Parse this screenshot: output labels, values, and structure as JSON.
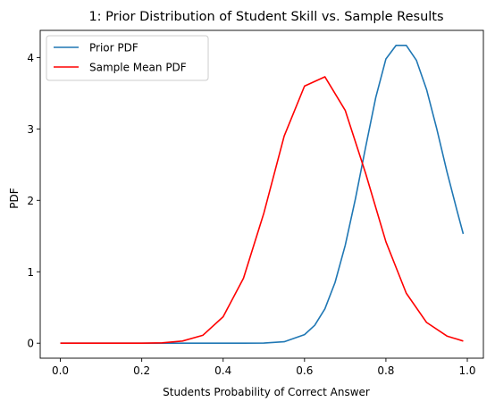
{
  "chart_data": {
    "type": "line",
    "title": "1: Prior Distribution of Student Skill vs. Sample Results",
    "xlabel": "Students Probability of Correct Answer",
    "ylabel": "PDF",
    "xlim": [
      -0.0495,
      1.0395
    ],
    "ylim": [
      -0.21,
      4.38
    ],
    "xticks": [
      0.0,
      0.2,
      0.4,
      0.6,
      0.8,
      1.0
    ],
    "xtick_labels": [
      "0.0",
      "0.2",
      "0.4",
      "0.6",
      "0.8",
      "1.0"
    ],
    "yticks": [
      0,
      1,
      2,
      3,
      4
    ],
    "ytick_labels": [
      "0",
      "1",
      "2",
      "3",
      "4"
    ],
    "grid": false,
    "legend_position": "top-left",
    "series": [
      {
        "name": "Prior PDF",
        "color": "#1f77b4",
        "x": [
          0.0,
          0.05,
          0.1,
          0.15,
          0.2,
          0.25,
          0.3,
          0.35,
          0.4,
          0.45,
          0.5,
          0.55,
          0.6,
          0.625,
          0.65,
          0.675,
          0.7,
          0.725,
          0.75,
          0.775,
          0.8,
          0.825,
          0.85,
          0.875,
          0.9,
          0.925,
          0.95,
          0.975,
          0.99
        ],
        "y": [
          0.0,
          0.0,
          0.0,
          0.0,
          0.0,
          0.0,
          0.0,
          0.0,
          0.0,
          0.0,
          0.002,
          0.02,
          0.12,
          0.25,
          0.48,
          0.85,
          1.37,
          2.02,
          2.74,
          3.44,
          3.98,
          4.17,
          4.17,
          3.96,
          3.55,
          3.0,
          2.4,
          1.85,
          1.53
        ]
      },
      {
        "name": "Sample Mean PDF",
        "color": "#ff0000",
        "x": [
          0.0,
          0.05,
          0.1,
          0.15,
          0.2,
          0.25,
          0.3,
          0.35,
          0.4,
          0.45,
          0.5,
          0.55,
          0.6,
          0.65,
          0.7,
          0.75,
          0.8,
          0.85,
          0.9,
          0.95,
          0.99
        ],
        "y": [
          0.0,
          0.0,
          0.0,
          0.0,
          0.0,
          0.005,
          0.03,
          0.11,
          0.37,
          0.91,
          1.82,
          2.9,
          3.6,
          3.73,
          3.26,
          2.38,
          1.42,
          0.7,
          0.29,
          0.1,
          0.03
        ]
      }
    ]
  }
}
